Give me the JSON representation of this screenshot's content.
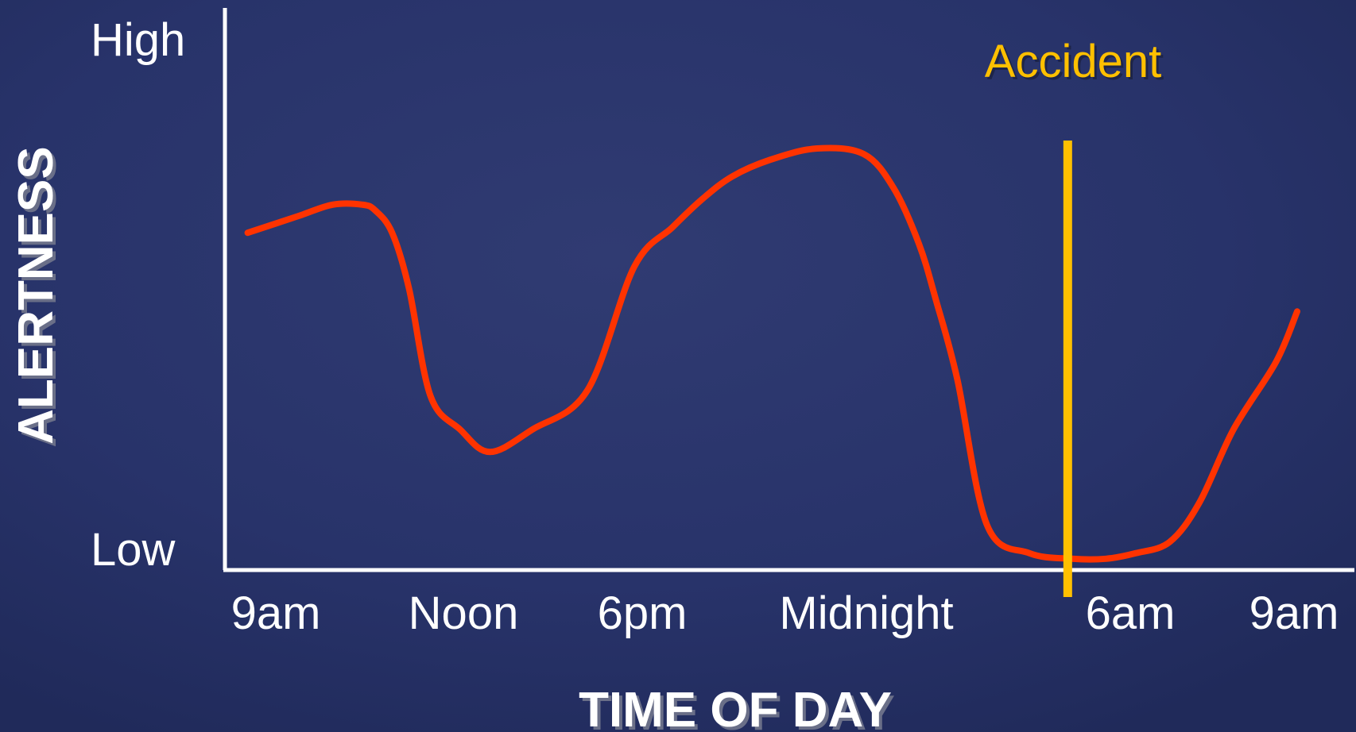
{
  "chart_data": {
    "type": "line",
    "xlabel": "TIME OF DAY",
    "ylabel": "ALERTNESS",
    "x_ticks": [
      "9am",
      "Noon",
      "6pm",
      "Midnight",
      "6am",
      "9am"
    ],
    "x_tick_hours": [
      0,
      3,
      9,
      15,
      21,
      24
    ],
    "y_ticks": [
      "High",
      "Low"
    ],
    "y_tick_levels": [
      1,
      0
    ],
    "xlim": [
      0,
      24
    ],
    "ylim": [
      0,
      1
    ],
    "grid": false,
    "series": [
      {
        "color": "#ff3300",
        "x": [
          -0.7,
          0.5,
          1.3,
          2.0,
          2.3,
          2.7,
          3.1,
          3.6,
          4.3,
          5.0,
          6.0,
          7.3,
          8.4,
          9.3,
          10.0,
          10.7,
          11.6,
          12.7,
          13.8,
          14.5,
          15.1,
          15.5,
          16.0,
          16.7,
          17.7,
          18.7,
          19.5,
          20.2,
          21.0,
          21.7,
          22.5,
          23.5,
          24.0
        ],
        "y": [
          0.6,
          0.63,
          0.65,
          0.65,
          0.64,
          0.6,
          0.5,
          0.31,
          0.25,
          0.21,
          0.25,
          0.32,
          0.54,
          0.61,
          0.66,
          0.7,
          0.73,
          0.75,
          0.74,
          0.68,
          0.58,
          0.48,
          0.34,
          0.08,
          0.03,
          0.02,
          0.02,
          0.03,
          0.05,
          0.12,
          0.25,
          0.37,
          0.46
        ]
      }
    ],
    "annotations": [
      {
        "type": "vline",
        "x": 18.6,
        "label": "Accident",
        "color": "#ffc000"
      }
    ]
  },
  "colors": {
    "background": "#2a3468",
    "axis": "#ffffff",
    "text": "#ffffff",
    "curve": "#ff3300",
    "accent": "#ffc000"
  }
}
